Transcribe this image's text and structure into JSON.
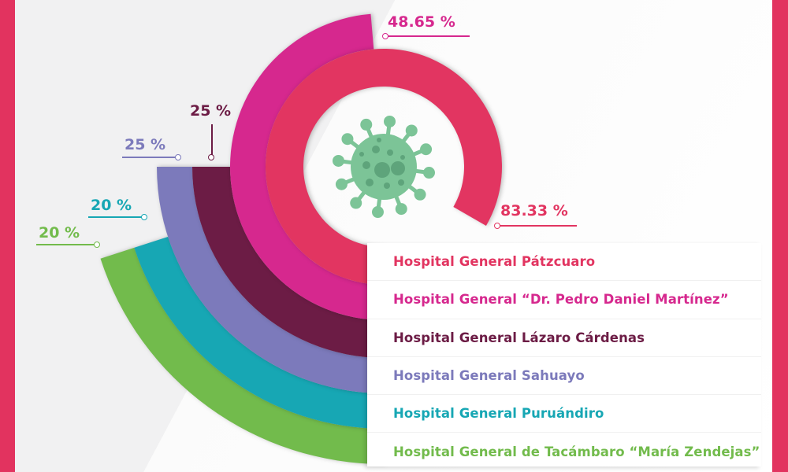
{
  "chart_data": {
    "type": "radial-bar",
    "unit": "%",
    "categories": [
      "Hospital General Pátzcuaro",
      "Hospital General “Dr. Pedro Daniel Martínez”",
      "Hospital General Lázaro Cárdenas",
      "Hospital General Sahuayo",
      "Hospital General Puruándiro",
      "Hospital General de Tacámbaro “María Zendejas”"
    ],
    "values": [
      83.33,
      48.65,
      25,
      25,
      20,
      20
    ],
    "data_labels": [
      "83.33 %",
      "48.65 %",
      "25 %",
      "25 %",
      "20 %",
      "20 %"
    ],
    "colors": [
      "#e23561",
      "#d6288e",
      "#6c1c45",
      "#7c7abb",
      "#17a7b4",
      "#72bb4c"
    ],
    "range": [
      0,
      100
    ],
    "legend_placement": "bottom-right",
    "center_icon": "virus-icon"
  },
  "theme": {
    "border": "#e2335f",
    "virus": "#7cc497",
    "virus_spots": "#5ea47b"
  }
}
